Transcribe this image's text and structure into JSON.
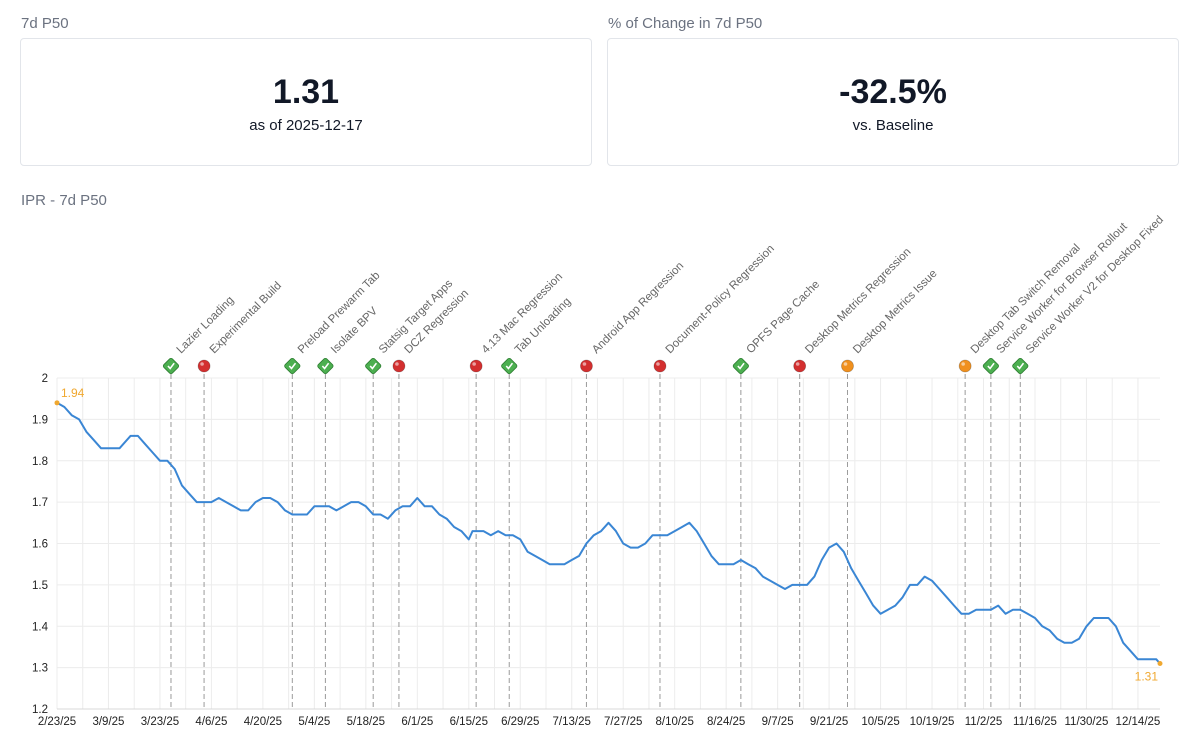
{
  "cards": [
    {
      "label": "7d P50",
      "value": "1.31",
      "sub": "as of 2025-12-17"
    },
    {
      "label": "% of Change in 7d P50",
      "value": "-32.5%",
      "sub": "vs. Baseline"
    }
  ],
  "colors": {
    "line": "#3a86d4",
    "grid": "#ececec",
    "good": "#4caf50",
    "bad": "#d32f2f",
    "warn": "#f0901e",
    "endpoint": "#f0a830",
    "tick": "#222222",
    "annotation_text": "#666666"
  },
  "chart_data": {
    "type": "line",
    "title": "IPR - 7d P50",
    "xlabel": "",
    "ylabel": "",
    "ylim": [
      1.2,
      2.0
    ],
    "yticks": [
      1.2,
      1.3,
      1.4,
      1.5,
      1.6,
      1.7,
      1.8,
      1.9,
      2
    ],
    "x_start": "2025-02-23",
    "x_end": "2025-12-17",
    "xticks": [
      {
        "label": "2/23/25",
        "day": 0
      },
      {
        "label": "3/9/25",
        "day": 14
      },
      {
        "label": "3/23/25",
        "day": 28
      },
      {
        "label": "4/6/25",
        "day": 42
      },
      {
        "label": "4/20/25",
        "day": 56
      },
      {
        "label": "5/4/25",
        "day": 70
      },
      {
        "label": "5/18/25",
        "day": 84
      },
      {
        "label": "6/1/25",
        "day": 98
      },
      {
        "label": "6/15/25",
        "day": 112
      },
      {
        "label": "6/29/25",
        "day": 126
      },
      {
        "label": "7/13/25",
        "day": 140
      },
      {
        "label": "7/27/25",
        "day": 154
      },
      {
        "label": "8/10/25",
        "day": 168
      },
      {
        "label": "8/24/25",
        "day": 182
      },
      {
        "label": "9/7/25",
        "day": 196
      },
      {
        "label": "9/21/25",
        "day": 210
      },
      {
        "label": "10/5/25",
        "day": 224
      },
      {
        "label": "10/19/25",
        "day": 238
      },
      {
        "label": "11/2/25",
        "day": 252
      },
      {
        "label": "11/16/25",
        "day": 266
      },
      {
        "label": "11/30/25",
        "day": 280
      },
      {
        "label": "12/14/25",
        "day": 294
      }
    ],
    "series": [
      {
        "name": "7d P50",
        "points": [
          [
            0,
            1.94
          ],
          [
            2,
            1.93
          ],
          [
            4,
            1.91
          ],
          [
            6,
            1.9
          ],
          [
            8,
            1.87
          ],
          [
            10,
            1.85
          ],
          [
            12,
            1.83
          ],
          [
            14,
            1.83
          ],
          [
            17,
            1.83
          ],
          [
            20,
            1.86
          ],
          [
            22,
            1.86
          ],
          [
            24,
            1.84
          ],
          [
            26,
            1.82
          ],
          [
            28,
            1.8
          ],
          [
            30,
            1.8
          ],
          [
            32,
            1.78
          ],
          [
            34,
            1.74
          ],
          [
            36,
            1.72
          ],
          [
            38,
            1.7
          ],
          [
            40,
            1.7
          ],
          [
            42,
            1.7
          ],
          [
            44,
            1.71
          ],
          [
            46,
            1.7
          ],
          [
            48,
            1.69
          ],
          [
            50,
            1.68
          ],
          [
            52,
            1.68
          ],
          [
            54,
            1.7
          ],
          [
            56,
            1.71
          ],
          [
            58,
            1.71
          ],
          [
            60,
            1.7
          ],
          [
            62,
            1.68
          ],
          [
            64,
            1.67
          ],
          [
            66,
            1.67
          ],
          [
            68,
            1.67
          ],
          [
            70,
            1.69
          ],
          [
            72,
            1.69
          ],
          [
            74,
            1.69
          ],
          [
            76,
            1.68
          ],
          [
            78,
            1.69
          ],
          [
            80,
            1.7
          ],
          [
            82,
            1.7
          ],
          [
            84,
            1.69
          ],
          [
            86,
            1.67
          ],
          [
            88,
            1.67
          ],
          [
            90,
            1.66
          ],
          [
            92,
            1.68
          ],
          [
            94,
            1.69
          ],
          [
            96,
            1.69
          ],
          [
            98,
            1.71
          ],
          [
            100,
            1.69
          ],
          [
            102,
            1.69
          ],
          [
            104,
            1.67
          ],
          [
            106,
            1.66
          ],
          [
            108,
            1.64
          ],
          [
            110,
            1.63
          ],
          [
            112,
            1.61
          ],
          [
            113,
            1.63
          ],
          [
            116,
            1.63
          ],
          [
            118,
            1.62
          ],
          [
            120,
            1.63
          ],
          [
            122,
            1.62
          ],
          [
            124,
            1.62
          ],
          [
            126,
            1.61
          ],
          [
            128,
            1.58
          ],
          [
            130,
            1.57
          ],
          [
            132,
            1.56
          ],
          [
            134,
            1.55
          ],
          [
            136,
            1.55
          ],
          [
            138,
            1.55
          ],
          [
            140,
            1.56
          ],
          [
            142,
            1.57
          ],
          [
            144,
            1.6
          ],
          [
            146,
            1.62
          ],
          [
            148,
            1.63
          ],
          [
            150,
            1.65
          ],
          [
            152,
            1.63
          ],
          [
            154,
            1.6
          ],
          [
            156,
            1.59
          ],
          [
            158,
            1.59
          ],
          [
            160,
            1.6
          ],
          [
            162,
            1.62
          ],
          [
            166,
            1.62
          ],
          [
            168,
            1.63
          ],
          [
            170,
            1.64
          ],
          [
            172,
            1.65
          ],
          [
            174,
            1.63
          ],
          [
            176,
            1.6
          ],
          [
            178,
            1.57
          ],
          [
            180,
            1.55
          ],
          [
            182,
            1.55
          ],
          [
            184,
            1.55
          ],
          [
            186,
            1.56
          ],
          [
            188,
            1.55
          ],
          [
            190,
            1.54
          ],
          [
            192,
            1.52
          ],
          [
            194,
            1.51
          ],
          [
            196,
            1.5
          ],
          [
            198,
            1.49
          ],
          [
            200,
            1.5
          ],
          [
            202,
            1.5
          ],
          [
            204,
            1.5
          ],
          [
            206,
            1.52
          ],
          [
            208,
            1.56
          ],
          [
            210,
            1.59
          ],
          [
            212,
            1.6
          ],
          [
            214,
            1.58
          ],
          [
            216,
            1.54
          ],
          [
            218,
            1.51
          ],
          [
            220,
            1.48
          ],
          [
            222,
            1.45
          ],
          [
            224,
            1.43
          ],
          [
            226,
            1.44
          ],
          [
            228,
            1.45
          ],
          [
            230,
            1.47
          ],
          [
            232,
            1.5
          ],
          [
            234,
            1.5
          ],
          [
            236,
            1.52
          ],
          [
            238,
            1.51
          ],
          [
            240,
            1.49
          ],
          [
            242,
            1.47
          ],
          [
            244,
            1.45
          ],
          [
            246,
            1.43
          ],
          [
            248,
            1.43
          ],
          [
            250,
            1.44
          ],
          [
            252,
            1.44
          ],
          [
            254,
            1.44
          ],
          [
            256,
            1.45
          ],
          [
            258,
            1.43
          ],
          [
            260,
            1.44
          ],
          [
            262,
            1.44
          ],
          [
            264,
            1.43
          ],
          [
            266,
            1.42
          ],
          [
            268,
            1.4
          ],
          [
            270,
            1.39
          ],
          [
            272,
            1.37
          ],
          [
            274,
            1.36
          ],
          [
            276,
            1.36
          ],
          [
            278,
            1.37
          ],
          [
            280,
            1.4
          ],
          [
            282,
            1.42
          ],
          [
            284,
            1.42
          ],
          [
            286,
            1.42
          ],
          [
            288,
            1.4
          ],
          [
            290,
            1.36
          ],
          [
            292,
            1.34
          ],
          [
            294,
            1.32
          ],
          [
            296,
            1.32
          ],
          [
            298,
            1.32
          ],
          [
            299,
            1.32
          ],
          [
            300,
            1.31
          ]
        ]
      }
    ],
    "endpoint_labels": [
      {
        "day": 0,
        "value": 1.94,
        "label": "1.94"
      },
      {
        "day": 300,
        "value": 1.31,
        "label": "1.31"
      }
    ],
    "annotations": [
      {
        "day": 31,
        "status": "good",
        "label": "Lazier Loading"
      },
      {
        "day": 40,
        "status": "bad",
        "label": "Experimental Build"
      },
      {
        "day": 64,
        "status": "good",
        "label": "Preload Prewarm Tab"
      },
      {
        "day": 73,
        "status": "good",
        "label": "Isolate BPV"
      },
      {
        "day": 86,
        "status": "good",
        "label": "Statsig Target Apps"
      },
      {
        "day": 93,
        "status": "bad",
        "label": "DCZ Regression"
      },
      {
        "day": 114,
        "status": "bad",
        "label": "4.13 Mac Regression"
      },
      {
        "day": 123,
        "status": "good",
        "label": "Tab Unloading"
      },
      {
        "day": 144,
        "status": "bad",
        "label": "Android App Regression"
      },
      {
        "day": 164,
        "status": "bad",
        "label": "Document-Policy Regression"
      },
      {
        "day": 186,
        "status": "good",
        "label": "OPFS Page Cache"
      },
      {
        "day": 202,
        "status": "bad",
        "label": "Desktop Metrics Regression"
      },
      {
        "day": 215,
        "status": "warn",
        "label": "Desktop Metrics Issue"
      },
      {
        "day": 247,
        "status": "warn",
        "label": "Desktop Tab Switch Removal"
      },
      {
        "day": 254,
        "status": "good",
        "label": "Service Worker for Browser Rollout"
      },
      {
        "day": 262,
        "status": "good",
        "label": "Service Worker V2 for Desktop Fixed"
      }
    ]
  }
}
